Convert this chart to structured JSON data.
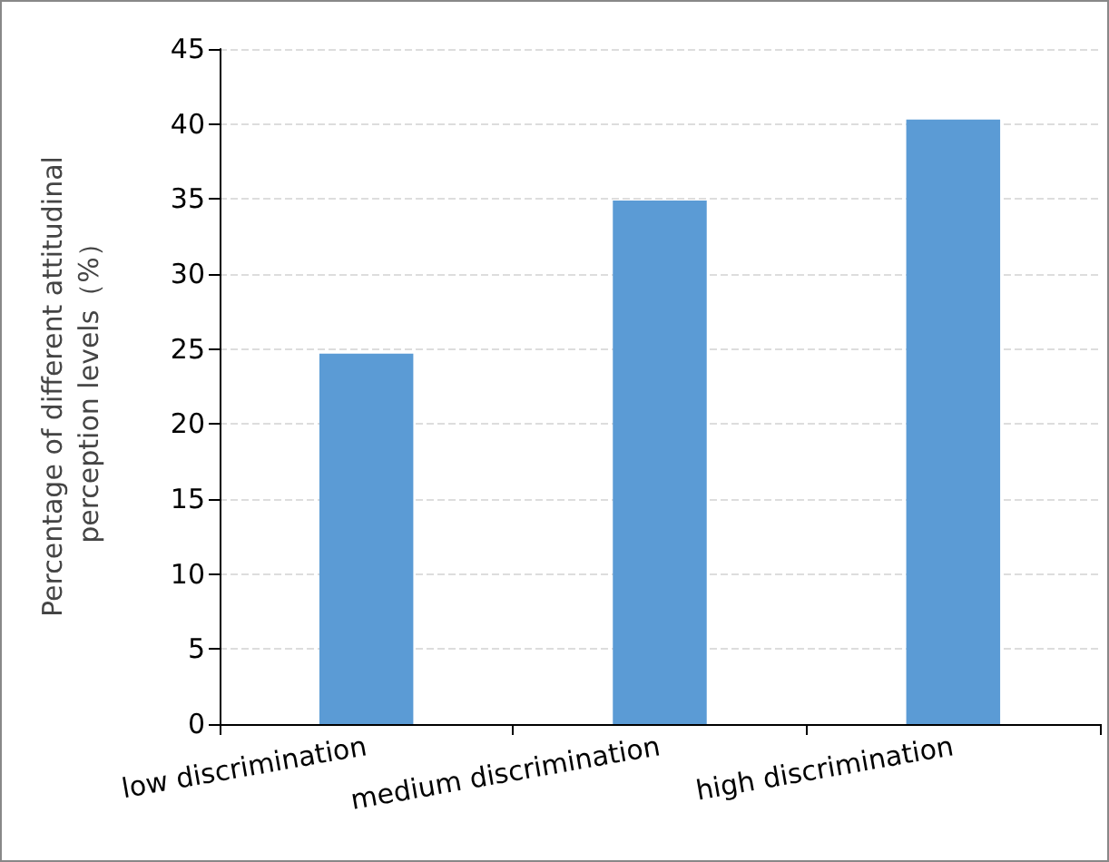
{
  "chart_data": {
    "type": "bar",
    "ylabel": "Percentage of different attitudinal\nperception levels（%）",
    "categories": [
      "low discrimination",
      "medium discrimination",
      "high discrimination"
    ],
    "values": [
      24.7,
      34.9,
      40.3
    ],
    "color": "#5b9bd5",
    "ylim": [
      0,
      45
    ],
    "yticks": [
      0,
      5,
      10,
      15,
      20,
      25,
      30,
      35,
      40,
      45
    ],
    "grid": "y"
  }
}
